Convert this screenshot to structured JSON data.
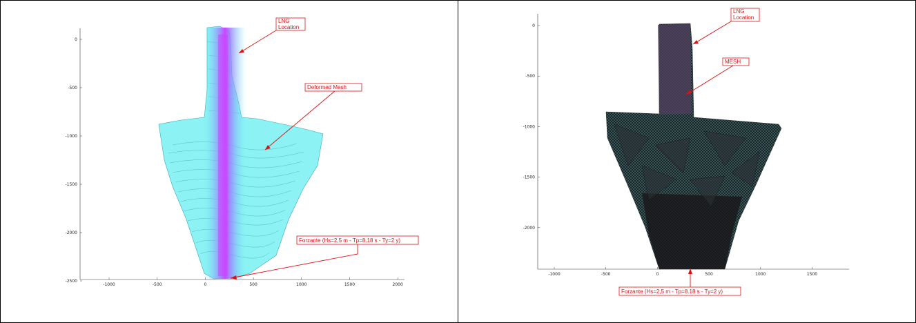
{
  "colors": {
    "annotation": "#dd1111",
    "mesh_cyan": "#66eef0",
    "mesh_magenta": "#cc44ff",
    "mesh_dark": "#1c1c1f",
    "mesh_teal": "#5fb9bd"
  },
  "panels": [
    {
      "id": "left",
      "chart_title": "",
      "x_ticks": [
        "-1000",
        "-500",
        "0",
        "500",
        "1000",
        "1500",
        "2000"
      ],
      "y_ticks": [
        "0",
        "-500",
        "-1000",
        "-1500",
        "-2000",
        "-2500"
      ],
      "annotations": [
        {
          "lines": [
            "LNG",
            "Location"
          ]
        },
        {
          "lines": [
            "Deformed Mesh"
          ]
        },
        {
          "lines": [
            "Forzante (Hs=2,5 m - Tp=8.18 s - Ty=2 y)"
          ]
        }
      ]
    },
    {
      "id": "right",
      "chart_title": "",
      "x_ticks": [
        "-1000",
        "-500",
        "0",
        "500",
        "1000",
        "1500"
      ],
      "y_ticks": [
        "0",
        "-500",
        "-1000",
        "-1500",
        "-2000"
      ],
      "annotations": [
        {
          "lines": [
            "LNG",
            "Location"
          ]
        },
        {
          "lines": [
            "MESH"
          ]
        },
        {
          "lines": [
            "Forzante (Hs=2,5 m - Tp=8.18 s - Ty=2 y)"
          ]
        }
      ]
    }
  ]
}
